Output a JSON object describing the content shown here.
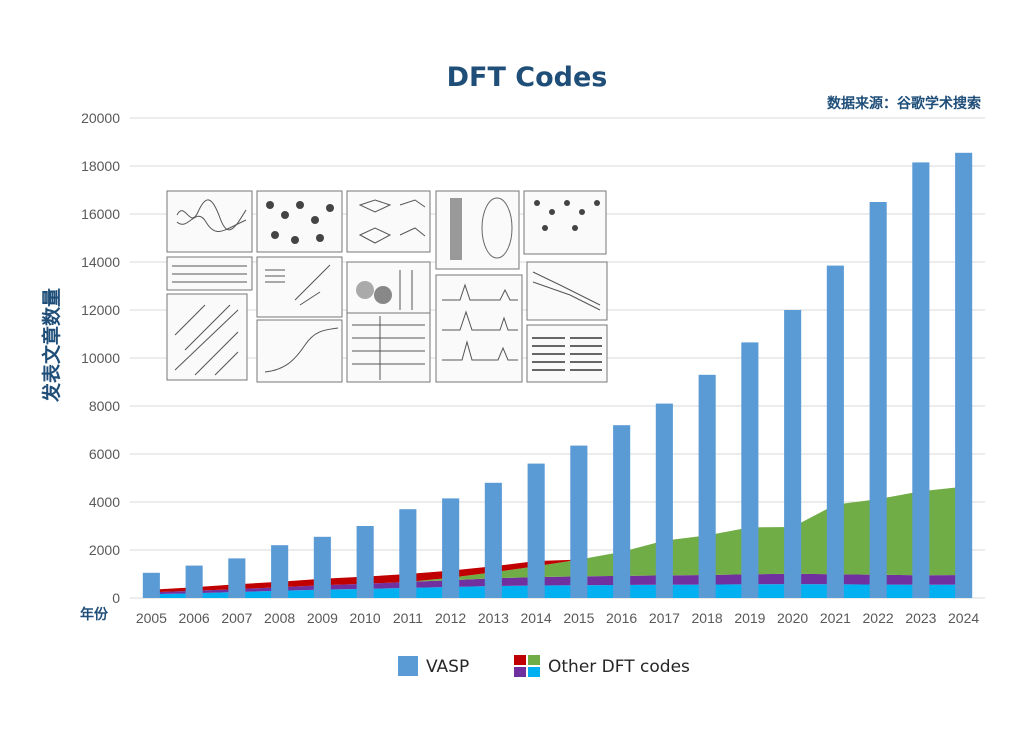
{
  "colors": {
    "vasp": "#5b9bd5",
    "layer_cyan": "#00b0f0",
    "layer_purple": "#7030a0",
    "layer_green": "#70ad47",
    "layer_red": "#c00000",
    "title": "#1f4e79"
  },
  "chart_data": {
    "type": "bar",
    "title": "DFT Codes",
    "source_note": "数据来源：谷歌学术搜索",
    "ylabel": "发表文章数量",
    "xlabel": "年份",
    "ylim": [
      0,
      20000
    ],
    "yticks": [
      0,
      2000,
      4000,
      6000,
      8000,
      10000,
      12000,
      14000,
      16000,
      18000,
      20000
    ],
    "grid": true,
    "legend_position": "bottom",
    "categories": [
      "2005",
      "2006",
      "2007",
      "2008",
      "2009",
      "2010",
      "2011",
      "2012",
      "2013",
      "2014",
      "2015",
      "2016",
      "2017",
      "2018",
      "2019",
      "2020",
      "2021",
      "2022",
      "2023",
      "2024"
    ],
    "series": [
      {
        "name": "VASP",
        "kind": "bar",
        "values": [
          1050,
          1350,
          1650,
          2200,
          2550,
          3000,
          3700,
          4150,
          4800,
          5600,
          6350,
          7200,
          8100,
          9300,
          10650,
          12000,
          13850,
          16500,
          18150,
          18550
        ]
      },
      {
        "name": "Other DFT codes",
        "kind": "stacked-area",
        "layers": [
          {
            "name": "cyan",
            "values": [
              150,
              200,
              250,
              300,
              350,
              380,
              420,
              460,
              500,
              520,
              530,
              540,
              550,
              560,
              570,
              580,
              570,
              560,
              550,
              560
            ]
          },
          {
            "name": "purple",
            "values": [
              80,
              100,
              120,
              150,
              180,
              210,
              250,
              280,
              320,
              350,
              370,
              380,
              390,
              400,
              420,
              430,
              420,
              410,
              400,
              400
            ]
          },
          {
            "name": "green",
            "values": [
              0,
              0,
              0,
              0,
              0,
              0,
              0,
              100,
              250,
              450,
              700,
              1000,
              1450,
              1650,
              1950,
              1950,
              2900,
              3150,
              3500,
              3700
            ]
          },
          {
            "name": "red",
            "values": [
              100,
              150,
              200,
              230,
              270,
              300,
              330,
              300,
              250,
              220,
              0,
              0,
              0,
              0,
              0,
              0,
              0,
              0,
              0,
              0
            ]
          }
        ]
      }
    ]
  },
  "legend": {
    "vasp_label": "VASP",
    "other_label": "Other DFT codes"
  }
}
